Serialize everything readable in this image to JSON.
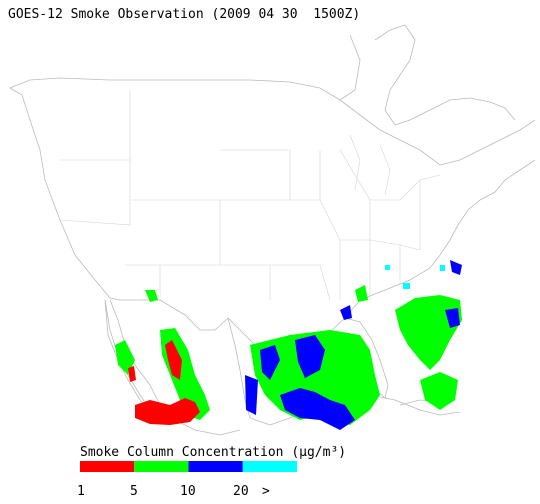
{
  "title": "GOES-12 Smoke Observation (2009 04 30  1500Z)",
  "legend": {
    "title": "Smoke Column Concentration (μg/m³)",
    "colors": [
      "#ff0000",
      "#00ff00",
      "#0000ff",
      "#00ffff"
    ],
    "labels": [
      "1",
      "5",
      "10",
      "20",
      ">"
    ]
  }
}
